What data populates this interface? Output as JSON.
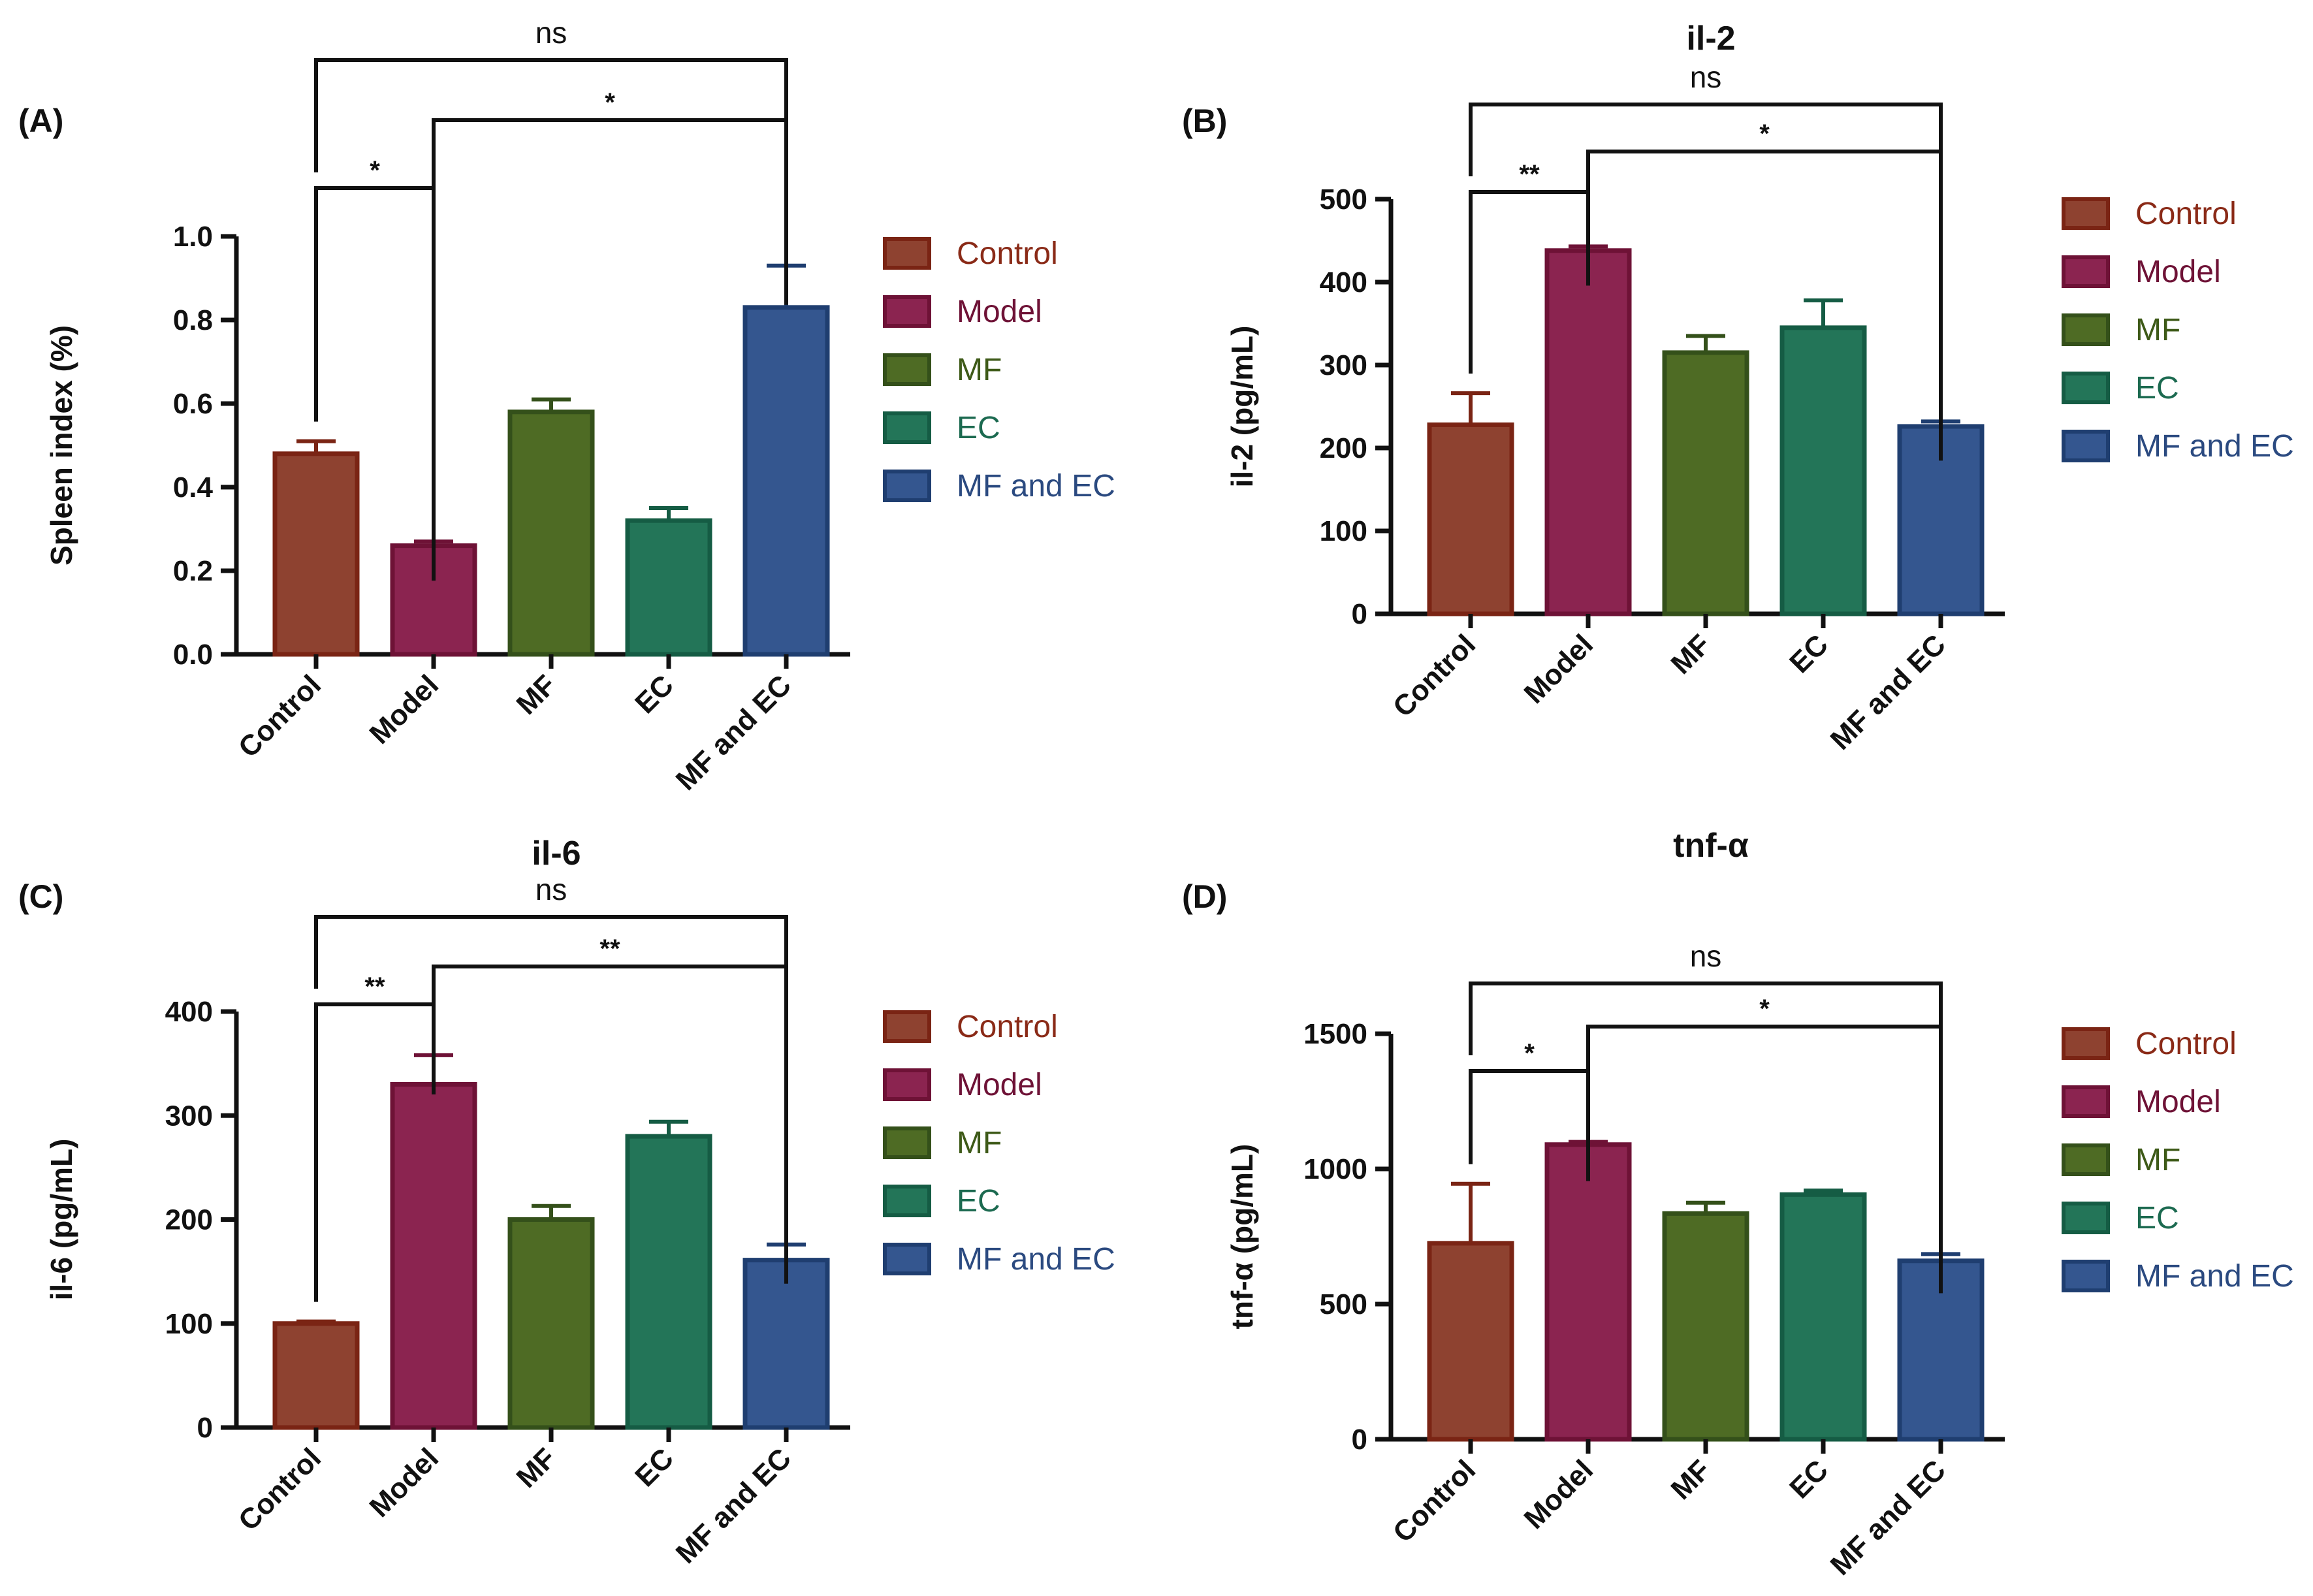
{
  "colors": {
    "Control": {
      "fill": "#8E4230",
      "stroke": "#7A2414",
      "text": "#8A2A17"
    },
    "Model": {
      "fill": "#8B2450",
      "stroke": "#6E1236",
      "text": "#6E1236"
    },
    "MF": {
      "fill": "#4E6B24",
      "stroke": "#34501A",
      "text": "#3E5A18"
    },
    "EC": {
      "fill": "#237558",
      "stroke": "#155C44",
      "text": "#1C6A50"
    },
    "MF and EC": {
      "fill": "#34568F",
      "stroke": "#1F3E70",
      "text": "#2B4A80"
    }
  },
  "chart_data": [
    {
      "panel": "(A)",
      "type": "bar",
      "title": "",
      "xlabel": "",
      "ylabel": "Spleen index (%)",
      "categories": [
        "Control",
        "Model",
        "MF",
        "EC",
        "MF and EC"
      ],
      "values": [
        0.48,
        0.26,
        0.58,
        0.32,
        0.83
      ],
      "errors": [
        0.03,
        0.01,
        0.03,
        0.03,
        0.1
      ],
      "ylim": [
        0,
        1.0
      ],
      "yticks": [
        0.0,
        0.2,
        0.4,
        0.6,
        0.8,
        1.0
      ],
      "ytick_labels": [
        "0.0",
        "0.2",
        "0.4",
        "0.6",
        "0.8",
        "1.0"
      ],
      "legend": [
        "Control",
        "Model",
        "MF",
        "EC",
        "MF and EC"
      ],
      "significance": [
        {
          "from": "Control",
          "to": "Model",
          "label": "*"
        },
        {
          "from": "Model",
          "to": "MF and EC",
          "label": "*"
        },
        {
          "from": "Control",
          "to": "MF and EC",
          "label": "ns"
        }
      ]
    },
    {
      "panel": "(B)",
      "type": "bar",
      "title": "il-2",
      "xlabel": "",
      "ylabel": "il-2 (pg/mL)",
      "categories": [
        "Control",
        "Model",
        "MF",
        "EC",
        "MF and EC"
      ],
      "values": [
        228,
        438,
        315,
        345,
        226
      ],
      "errors": [
        38,
        5,
        20,
        33,
        6
      ],
      "ylim": [
        0,
        500
      ],
      "yticks": [
        0,
        100,
        200,
        300,
        400,
        500
      ],
      "ytick_labels": [
        "0",
        "100",
        "200",
        "300",
        "400",
        "500"
      ],
      "legend": [
        "Control",
        "Model",
        "MF",
        "EC",
        "MF and EC"
      ],
      "significance": [
        {
          "from": "Control",
          "to": "Model",
          "label": "**"
        },
        {
          "from": "Model",
          "to": "MF and EC",
          "label": "*"
        },
        {
          "from": "Control",
          "to": "MF and EC",
          "label": "ns"
        }
      ]
    },
    {
      "panel": "(C)",
      "type": "bar",
      "title": "il-6",
      "xlabel": "",
      "ylabel": "il-6 (pg/mL)",
      "categories": [
        "Control",
        "Model",
        "MF",
        "EC",
        "MF and EC"
      ],
      "values": [
        100,
        330,
        200,
        280,
        161
      ],
      "errors": [
        2,
        28,
        13,
        14,
        15
      ],
      "ylim": [
        0,
        400
      ],
      "yticks": [
        0,
        100,
        200,
        300,
        400
      ],
      "ytick_labels": [
        "0",
        "100",
        "200",
        "300",
        "400"
      ],
      "legend": [
        "Control",
        "Model",
        "MF",
        "EC",
        "MF and EC"
      ],
      "significance": [
        {
          "from": "Control",
          "to": "Model",
          "label": "**"
        },
        {
          "from": "Model",
          "to": "MF and EC",
          "label": "**"
        },
        {
          "from": "Control",
          "to": "MF and EC",
          "label": "ns"
        }
      ]
    },
    {
      "panel": "(D)",
      "type": "bar",
      "title": "tnf-α",
      "xlabel": "",
      "ylabel": "tnf-α (pg/mL)",
      "categories": [
        "Control",
        "Model",
        "MF",
        "EC",
        "MF and EC"
      ],
      "values": [
        725,
        1090,
        835,
        905,
        660
      ],
      "errors": [
        220,
        10,
        40,
        15,
        25
      ],
      "ylim": [
        0,
        1500
      ],
      "yticks": [
        0,
        500,
        1000,
        1500
      ],
      "ytick_labels": [
        "0",
        "500",
        "1000",
        "1500"
      ],
      "legend": [
        "Control",
        "Model",
        "MF",
        "EC",
        "MF and EC"
      ],
      "significance": [
        {
          "from": "Control",
          "to": "Model",
          "label": "*"
        },
        {
          "from": "Model",
          "to": "MF and EC",
          "label": "*"
        },
        {
          "from": "Control",
          "to": "MF and EC",
          "label": "ns"
        }
      ]
    }
  ]
}
